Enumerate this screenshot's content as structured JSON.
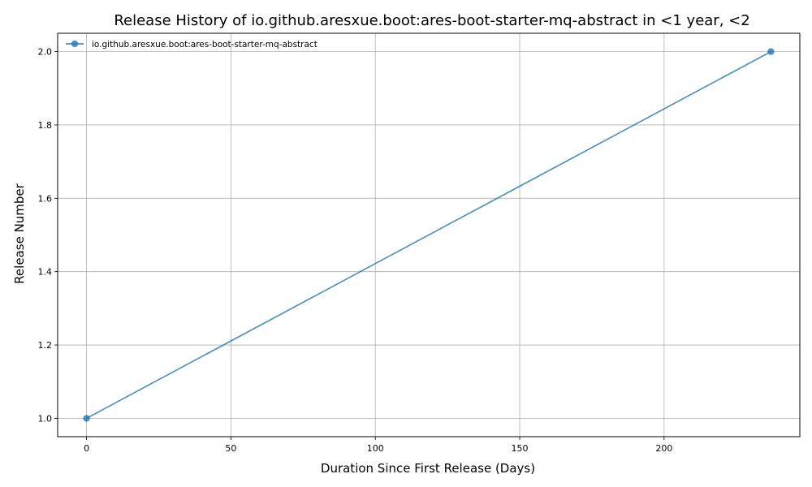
{
  "chart_data": {
    "type": "line",
    "title": "Release History of io.github.aresxue.boot:ares-boot-starter-mq-abstract in <1 year, <2",
    "xlabel": "Duration Since First Release (Days)",
    "ylabel": "Release Number",
    "xlim": [
      -10,
      247
    ],
    "ylim": [
      0.95,
      2.05
    ],
    "xticks": [
      0,
      50,
      100,
      150,
      200
    ],
    "yticks": [
      1.0,
      1.2,
      1.4,
      1.6,
      1.8,
      2.0
    ],
    "xtick_labels": [
      "0",
      "50",
      "100",
      "150",
      "200"
    ],
    "ytick_labels": [
      "1.0",
      "1.2",
      "1.4",
      "1.6",
      "1.8",
      "2.0"
    ],
    "grid": true,
    "legend_position": "top-left",
    "series": [
      {
        "name": "io.github.aresxue.boot:ares-boot-starter-mq-abstract",
        "color": "#1f77b4",
        "marker": "circle",
        "x": [
          0,
          237
        ],
        "y": [
          1,
          2
        ]
      }
    ]
  }
}
